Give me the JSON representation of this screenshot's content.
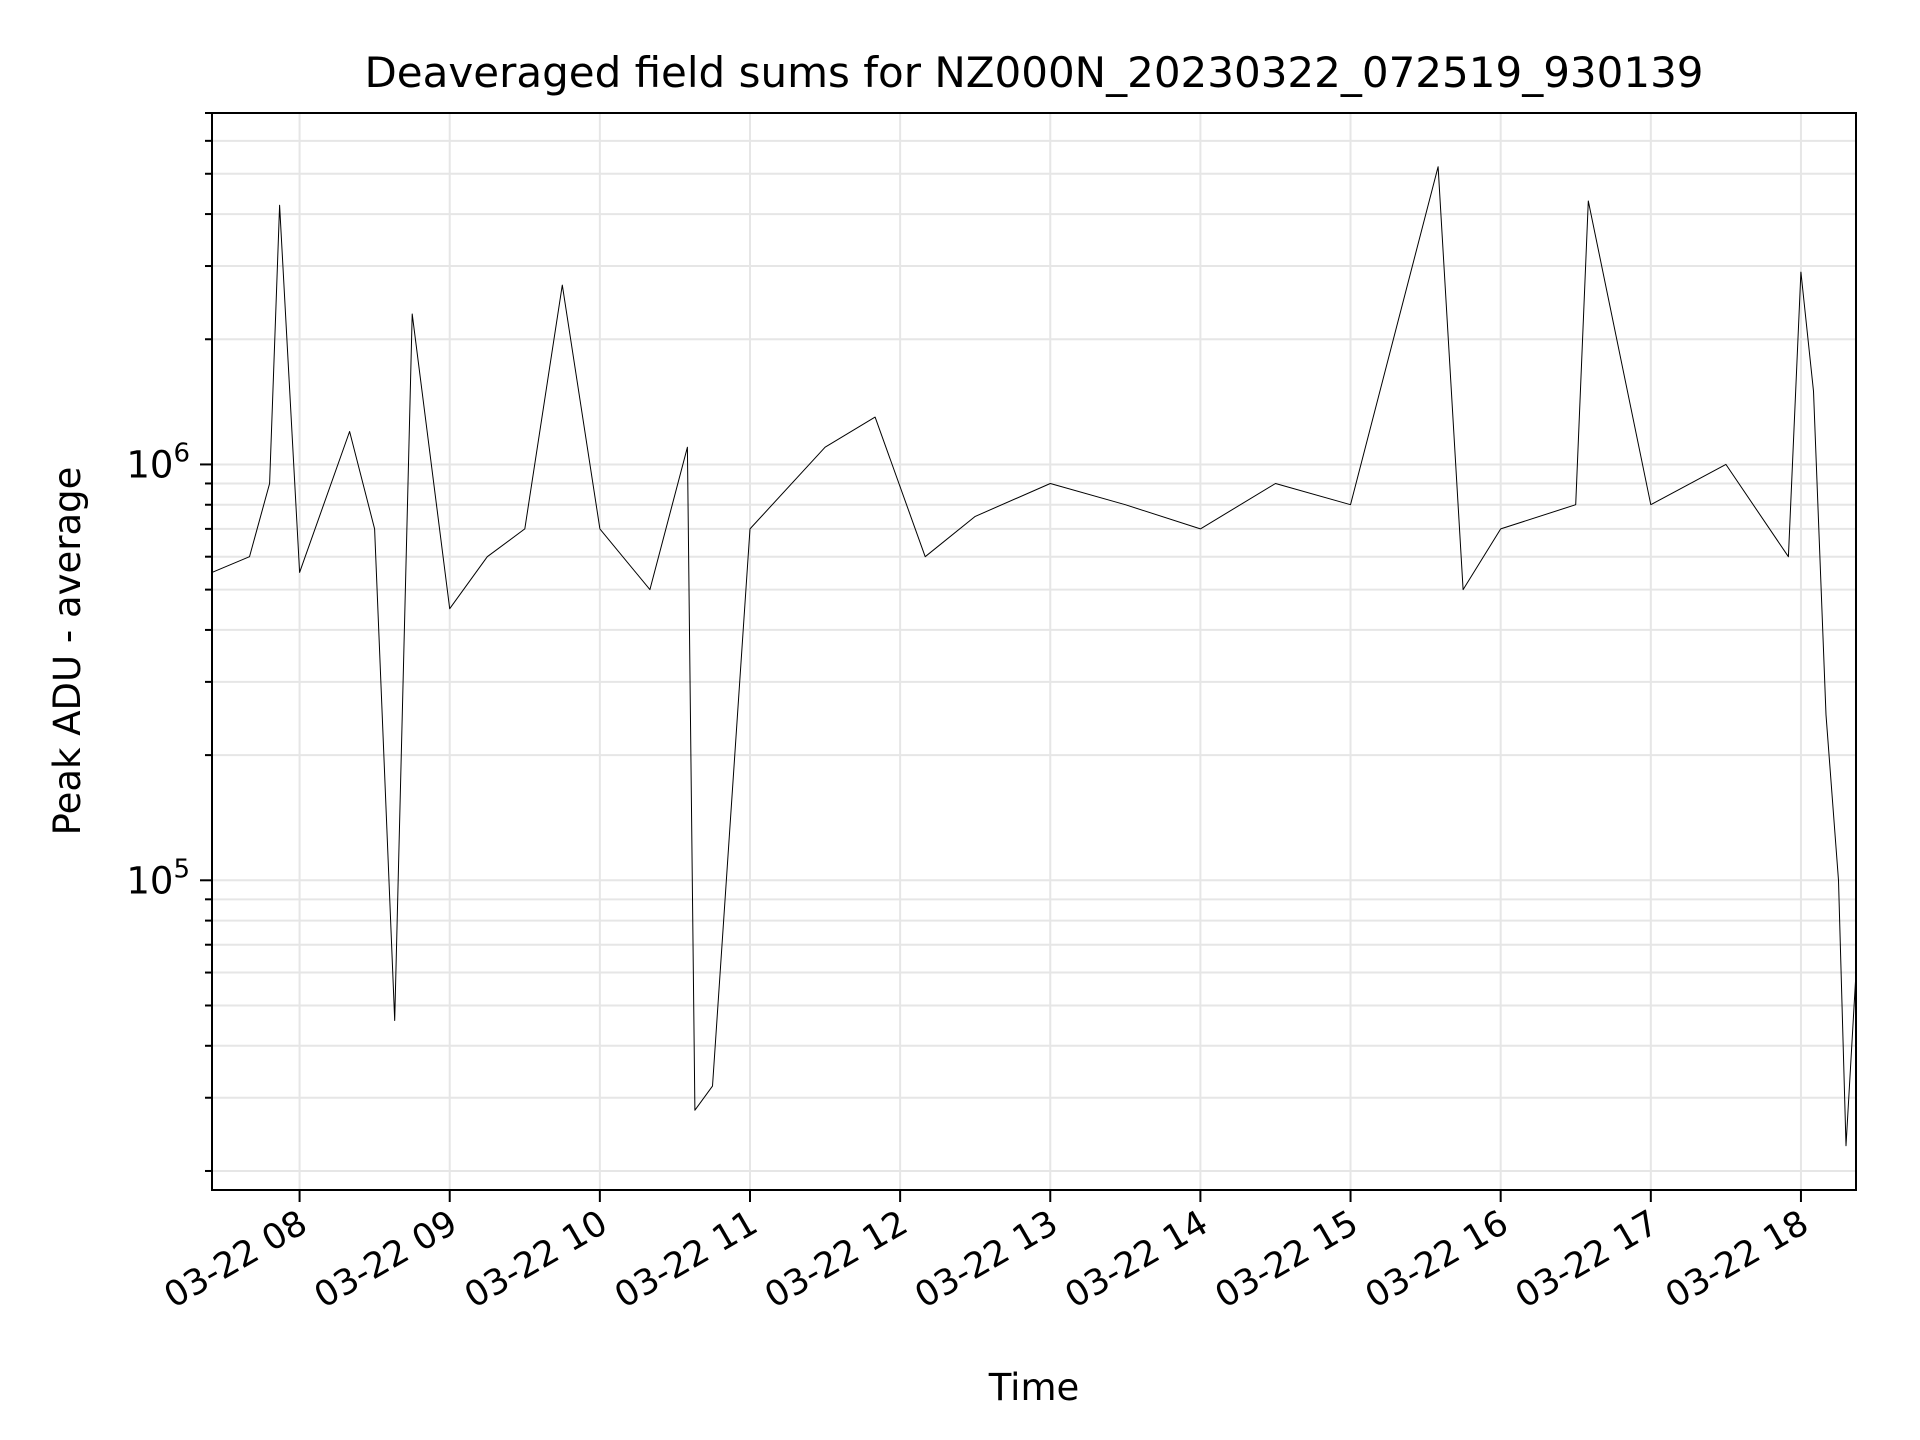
{
  "chart_data": {
    "type": "line",
    "title": "Deaveraged field sums for NZ000N_20230322_072519_930139",
    "xlabel": "Time",
    "ylabel": "Peak ADU - average",
    "yscale": "log",
    "ylim": [
      18000,
      7000000
    ],
    "xlim": [
      "03-22 07:25",
      "03-22 18:22"
    ],
    "grid": true,
    "x_ticks": [
      "03-22 08",
      "03-22 09",
      "03-22 10",
      "03-22 11",
      "03-22 12",
      "03-22 13",
      "03-22 14",
      "03-22 15",
      "03-22 16",
      "03-22 17",
      "03-22 18"
    ],
    "y_ticks": [
      {
        "value": 100000,
        "base": "10",
        "exp": "5"
      },
      {
        "value": 1000000,
        "base": "10",
        "exp": "6"
      }
    ],
    "series": [
      {
        "color": "#000000",
        "x": [
          "03-22 07:25",
          "03-22 07:40",
          "03-22 07:48",
          "03-22 07:52",
          "03-22 08:00",
          "03-22 08:20",
          "03-22 08:30",
          "03-22 08:38",
          "03-22 08:45",
          "03-22 09:00",
          "03-22 09:15",
          "03-22 09:30",
          "03-22 09:45",
          "03-22 10:00",
          "03-22 10:20",
          "03-22 10:35",
          "03-22 10:38",
          "03-22 10:45",
          "03-22 11:00",
          "03-22 11:30",
          "03-22 11:50",
          "03-22 12:10",
          "03-22 12:30",
          "03-22 13:00",
          "03-22 13:30",
          "03-22 14:00",
          "03-22 14:30",
          "03-22 15:00",
          "03-22 15:35",
          "03-22 15:45",
          "03-22 16:00",
          "03-22 16:30",
          "03-22 16:35",
          "03-22 17:00",
          "03-22 17:30",
          "03-22 17:55",
          "03-22 18:00",
          "03-22 18:05",
          "03-22 18:10",
          "03-22 18:15",
          "03-22 18:18",
          "03-22 18:22"
        ],
        "y": [
          550000,
          600000,
          900000,
          4200000,
          550000,
          1200000,
          700000,
          46000,
          2300000,
          450000,
          600000,
          700000,
          2700000,
          700000,
          500000,
          1100000,
          28000,
          32000,
          700000,
          1100000,
          1300000,
          600000,
          750000,
          900000,
          800000,
          700000,
          900000,
          800000,
          5200000,
          500000,
          700000,
          800000,
          4300000,
          800000,
          1000000,
          600000,
          2900000,
          1500000,
          250000,
          100000,
          23000,
          60000
        ]
      }
    ]
  }
}
